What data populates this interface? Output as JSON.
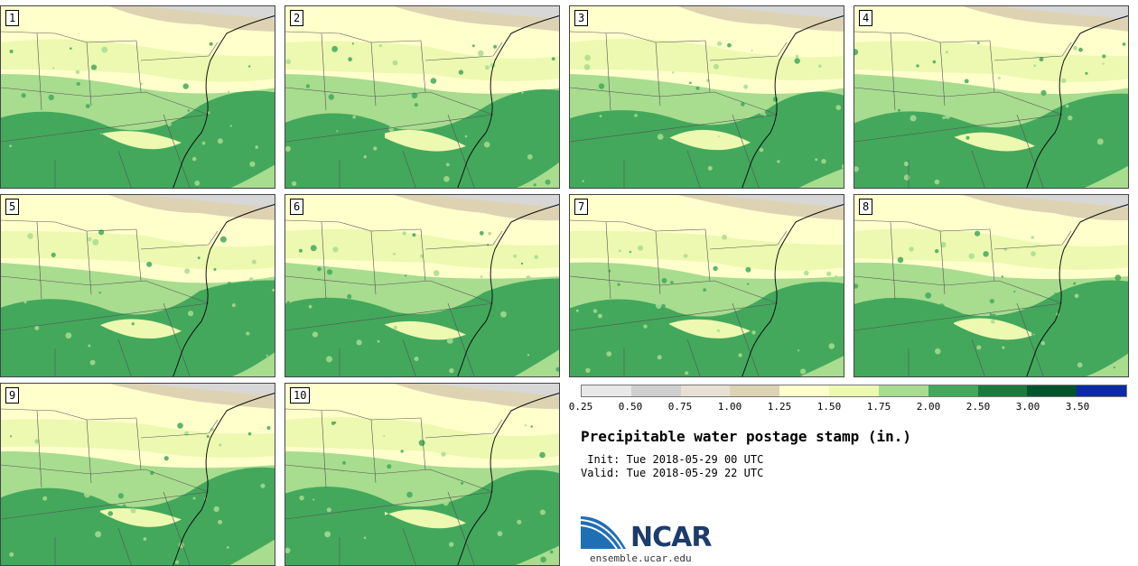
{
  "map": {
    "panels": [
      "1",
      "2",
      "3",
      "4",
      "5",
      "6",
      "7",
      "8",
      "9",
      "10"
    ]
  },
  "legend": {
    "title": "Precipitable water postage stamp (in.)",
    "init": " Init: Tue 2018-05-29 00 UTC",
    "valid": "Valid: Tue 2018-05-29 22 UTC",
    "tick_labels": [
      "0.25",
      "0.50",
      "0.75",
      "1.00",
      "1.25",
      "1.50",
      "1.75",
      "2.00",
      "2.50",
      "3.00",
      "3.50"
    ],
    "colors": [
      "#e8e8e8",
      "#cfcfcf",
      "#e6e1d4",
      "#ddd3b3",
      "#ffffcc",
      "#edf8b1",
      "#a8dc8f",
      "#43a85c",
      "#1b7a3c",
      "#00542b",
      "#0a2aa8"
    ]
  },
  "logo": {
    "name": "NCAR",
    "url": "ensemble.ucar.edu"
  }
}
